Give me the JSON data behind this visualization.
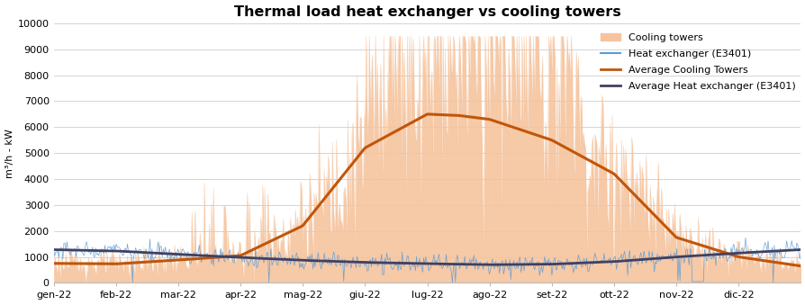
{
  "title": "Thermal load heat exchanger vs cooling towers",
  "ylabel": "m³/h - kW",
  "ylim": [
    0,
    10000
  ],
  "yticks": [
    0,
    1000,
    2000,
    3000,
    4000,
    5000,
    6000,
    7000,
    8000,
    9000,
    10000
  ],
  "x_labels": [
    "gen-22",
    "feb-22",
    "mar-22",
    "apr-22",
    "mag-22",
    "giu-22",
    "lug-22",
    "ago-22",
    "set-22",
    "ott-22",
    "nov-22",
    "dic-22"
  ],
  "n_months": 12,
  "avg_ct_x": [
    0,
    1,
    2,
    3,
    4,
    5,
    6,
    6.5,
    7,
    8,
    9,
    10,
    11,
    12
  ],
  "avg_ct_y": [
    750,
    730,
    880,
    1050,
    2200,
    5200,
    6500,
    6450,
    6300,
    5500,
    4200,
    1750,
    1000,
    650
  ],
  "avg_hx_x": [
    0,
    1,
    2,
    3,
    4,
    5,
    6,
    7,
    8,
    9,
    10,
    11,
    12
  ],
  "avg_hx_y": [
    1280,
    1230,
    1100,
    980,
    870,
    790,
    740,
    700,
    720,
    820,
    1000,
    1150,
    1280
  ],
  "colors": {
    "cooling_towers_fill": "#f5c49e",
    "heat_exchanger": "#5b9bd5",
    "avg_cooling": "#c0560a",
    "avg_heat": "#404060",
    "grid": "#cccccc",
    "background": "#ffffff"
  },
  "legend": {
    "cooling_towers": "Cooling towers",
    "heat_exchanger": "Heat exchanger (E3401)",
    "avg_cooling": "Average Cooling Towers",
    "avg_heat": "Average Heat exchanger (E3401)"
  }
}
